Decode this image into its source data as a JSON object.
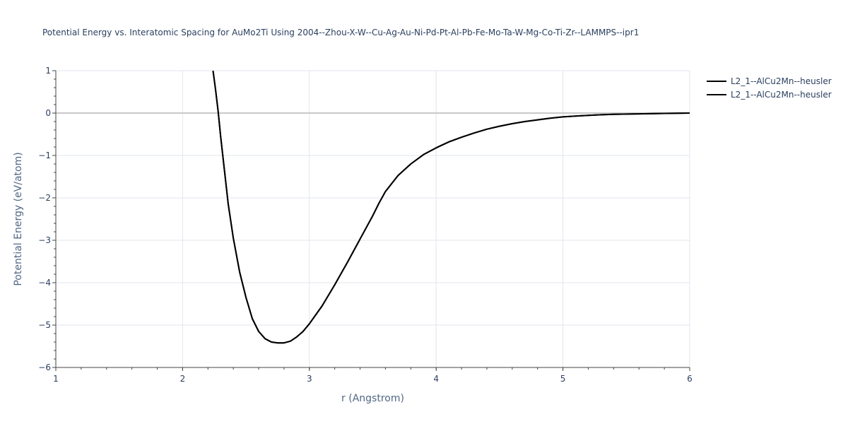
{
  "chart_data": {
    "type": "line",
    "title": "Potential Energy vs. Interatomic Spacing for AuMo2Ti Using 2004--Zhou-X-W--Cu-Ag-Au-Ni-Pd-Pt-Al-Pb-Fe-Mo-Ta-W-Mg-Co-Ti-Zr--LAMMPS--ipr1",
    "xlabel": "r (Angstrom)",
    "ylabel": "Potential Energy (eV/atom)",
    "xlim": [
      1,
      6
    ],
    "ylim": [
      -6,
      1
    ],
    "xticks": [
      1,
      2,
      3,
      4,
      5,
      6
    ],
    "yticks": [
      1,
      0,
      -1,
      -2,
      -3,
      -4,
      -5,
      -6
    ],
    "ytick_labels": [
      "1",
      "0",
      "−1",
      "−2",
      "−3",
      "−4",
      "−5",
      "−6"
    ],
    "grid": true,
    "legend_position": "top-right",
    "series": [
      {
        "name": "L2_1--AlCu2Mn--heusler",
        "color": "#000000",
        "x": [
          2.24,
          2.26,
          2.28,
          2.3,
          2.33,
          2.36,
          2.4,
          2.45,
          2.5,
          2.55,
          2.6,
          2.65,
          2.7,
          2.75,
          2.8,
          2.85,
          2.9,
          2.95,
          3.0,
          3.1,
          3.2,
          3.3,
          3.4,
          3.5,
          3.55,
          3.6,
          3.7,
          3.8,
          3.9,
          4.0,
          4.1,
          4.2,
          4.3,
          4.4,
          4.5,
          4.6,
          4.7,
          4.8,
          4.9,
          5.0,
          5.1,
          5.2,
          5.3,
          5.4,
          5.6,
          5.8,
          6.0
        ],
        "y": [
          1.0,
          0.55,
          0.05,
          -0.55,
          -1.35,
          -2.15,
          -2.95,
          -3.75,
          -4.35,
          -4.85,
          -5.15,
          -5.32,
          -5.4,
          -5.42,
          -5.42,
          -5.38,
          -5.28,
          -5.15,
          -4.97,
          -4.55,
          -4.05,
          -3.52,
          -2.97,
          -2.42,
          -2.12,
          -1.85,
          -1.47,
          -1.2,
          -0.98,
          -0.82,
          -0.68,
          -0.57,
          -0.47,
          -0.38,
          -0.31,
          -0.25,
          -0.2,
          -0.16,
          -0.12,
          -0.09,
          -0.07,
          -0.055,
          -0.04,
          -0.03,
          -0.018,
          -0.008,
          0.0
        ]
      },
      {
        "name": "L2_1--AlCu2Mn--heusler",
        "color": "#000000",
        "x": [
          2.24,
          2.26,
          2.28,
          2.3,
          2.33,
          2.36,
          2.4,
          2.45,
          2.5,
          2.55,
          2.6,
          2.65,
          2.7,
          2.75,
          2.8,
          2.85,
          2.9,
          2.95,
          3.0,
          3.1,
          3.2,
          3.3,
          3.4,
          3.5,
          3.55,
          3.6,
          3.7,
          3.8,
          3.9,
          4.0,
          4.1,
          4.2,
          4.3,
          4.4,
          4.5,
          4.6,
          4.7,
          4.8,
          4.9,
          5.0,
          5.1,
          5.2,
          5.3,
          5.4,
          5.6,
          5.8,
          6.0
        ],
        "y": [
          1.0,
          0.55,
          0.05,
          -0.55,
          -1.35,
          -2.15,
          -2.95,
          -3.75,
          -4.35,
          -4.85,
          -5.15,
          -5.32,
          -5.4,
          -5.42,
          -5.42,
          -5.38,
          -5.28,
          -5.15,
          -4.97,
          -4.55,
          -4.05,
          -3.52,
          -2.97,
          -2.42,
          -2.12,
          -1.85,
          -1.47,
          -1.2,
          -0.98,
          -0.82,
          -0.68,
          -0.57,
          -0.47,
          -0.38,
          -0.31,
          -0.25,
          -0.2,
          -0.16,
          -0.12,
          -0.09,
          -0.07,
          -0.055,
          -0.04,
          -0.03,
          -0.018,
          -0.008,
          0.0
        ]
      }
    ]
  }
}
